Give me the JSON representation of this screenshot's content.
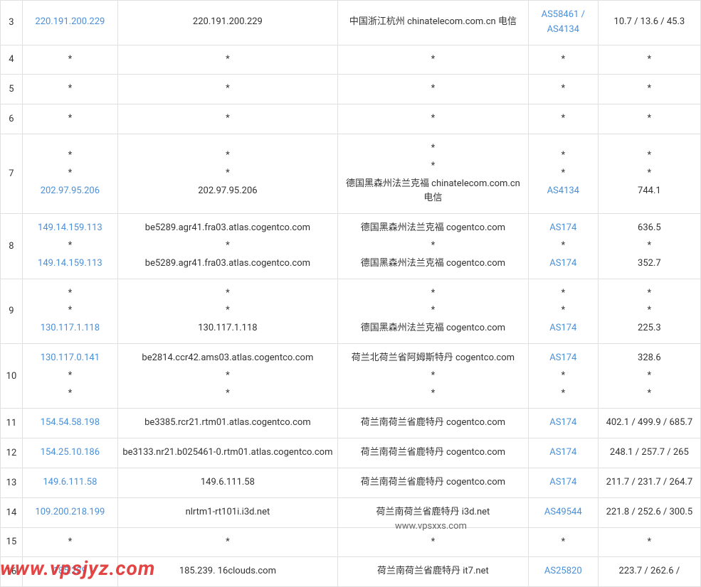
{
  "watermark": "www.vpsjyz.com",
  "watermark2": "www.vpsxxs.com",
  "rows": [
    {
      "hop": "3",
      "ip": [
        {
          "v": "220.191.200.229",
          "link": true
        }
      ],
      "host": [
        {
          "v": "220.191.200.229"
        }
      ],
      "loc": [
        {
          "v": "中国浙江杭州 chinatelecom.com.cn 电信"
        }
      ],
      "as": [
        {
          "v": "AS58461 / AS4134",
          "link": true
        }
      ],
      "rtt": [
        {
          "v": "10.7 / 13.6 / 45.3"
        }
      ]
    },
    {
      "hop": "4",
      "ip": [
        {
          "v": "*"
        }
      ],
      "host": [
        {
          "v": "*"
        }
      ],
      "loc": [
        {
          "v": "*"
        }
      ],
      "as": [
        {
          "v": "*"
        }
      ],
      "rtt": [
        {
          "v": "*"
        }
      ]
    },
    {
      "hop": "5",
      "ip": [
        {
          "v": "*"
        }
      ],
      "host": [
        {
          "v": "*"
        }
      ],
      "loc": [
        {
          "v": "*"
        }
      ],
      "as": [
        {
          "v": "*"
        }
      ],
      "rtt": [
        {
          "v": "*"
        }
      ]
    },
    {
      "hop": "6",
      "ip": [
        {
          "v": "*"
        }
      ],
      "host": [
        {
          "v": "*"
        }
      ],
      "loc": [
        {
          "v": "*"
        }
      ],
      "as": [
        {
          "v": "*"
        }
      ],
      "rtt": [
        {
          "v": "*"
        }
      ]
    },
    {
      "hop": "7",
      "ip": [
        {
          "v": "*"
        },
        {
          "v": "*"
        },
        {
          "v": "202.97.95.206",
          "link": true
        }
      ],
      "host": [
        {
          "v": "*"
        },
        {
          "v": "*"
        },
        {
          "v": "202.97.95.206"
        }
      ],
      "loc": [
        {
          "v": "*"
        },
        {
          "v": "*"
        },
        {
          "v": "德国黑森州法兰克福 chinatelecom.com.cn 电信"
        }
      ],
      "as": [
        {
          "v": "*"
        },
        {
          "v": "*"
        },
        {
          "v": "AS4134",
          "link": true
        }
      ],
      "rtt": [
        {
          "v": "*"
        },
        {
          "v": "*"
        },
        {
          "v": "744.1"
        }
      ]
    },
    {
      "hop": "8",
      "ip": [
        {
          "v": "149.14.159.113",
          "link": true
        },
        {
          "v": "*"
        },
        {
          "v": "149.14.159.113",
          "link": true
        }
      ],
      "host": [
        {
          "v": "be5289.agr41.fra03.atlas.cogentco.com"
        },
        {
          "v": "*"
        },
        {
          "v": "be5289.agr41.fra03.atlas.cogentco.com"
        }
      ],
      "loc": [
        {
          "v": "德国黑森州法兰克福 cogentco.com"
        },
        {
          "v": "*"
        },
        {
          "v": "德国黑森州法兰克福 cogentco.com"
        }
      ],
      "as": [
        {
          "v": "AS174",
          "link": true
        },
        {
          "v": "*"
        },
        {
          "v": "AS174",
          "link": true
        }
      ],
      "rtt": [
        {
          "v": "636.5"
        },
        {
          "v": "*"
        },
        {
          "v": "352.7"
        }
      ]
    },
    {
      "hop": "9",
      "ip": [
        {
          "v": "*"
        },
        {
          "v": "*"
        },
        {
          "v": "130.117.1.118",
          "link": true
        }
      ],
      "host": [
        {
          "v": "*"
        },
        {
          "v": "*"
        },
        {
          "v": "130.117.1.118"
        }
      ],
      "loc": [
        {
          "v": "*"
        },
        {
          "v": "*"
        },
        {
          "v": "德国黑森州法兰克福 cogentco.com"
        }
      ],
      "as": [
        {
          "v": "*"
        },
        {
          "v": "*"
        },
        {
          "v": "AS174",
          "link": true
        }
      ],
      "rtt": [
        {
          "v": "*"
        },
        {
          "v": "*"
        },
        {
          "v": "225.3"
        }
      ]
    },
    {
      "hop": "10",
      "ip": [
        {
          "v": "130.117.0.141",
          "link": true
        },
        {
          "v": "*"
        },
        {
          "v": "*"
        }
      ],
      "host": [
        {
          "v": "be2814.ccr42.ams03.atlas.cogentco.com"
        },
        {
          "v": "*"
        },
        {
          "v": "*"
        }
      ],
      "loc": [
        {
          "v": "荷兰北荷兰省阿姆斯特丹 cogentco.com"
        },
        {
          "v": "*"
        },
        {
          "v": "*"
        }
      ],
      "as": [
        {
          "v": "AS174",
          "link": true
        },
        {
          "v": "*"
        },
        {
          "v": "*"
        }
      ],
      "rtt": [
        {
          "v": "328.6"
        },
        {
          "v": "*"
        },
        {
          "v": "*"
        }
      ]
    },
    {
      "hop": "11",
      "ip": [
        {
          "v": "154.54.58.198",
          "link": true
        }
      ],
      "host": [
        {
          "v": "be3385.rcr21.rtm01.atlas.cogentco.com"
        }
      ],
      "loc": [
        {
          "v": "荷兰南荷兰省鹿特丹 cogentco.com"
        }
      ],
      "as": [
        {
          "v": "AS174",
          "link": true
        }
      ],
      "rtt": [
        {
          "v": "402.1 / 499.9 / 685.7"
        }
      ]
    },
    {
      "hop": "12",
      "ip": [
        {
          "v": "154.25.10.186",
          "link": true
        }
      ],
      "host": [
        {
          "v": "be3133.nr21.b025461-0.rtm01.atlas.cogentco.com"
        }
      ],
      "loc": [
        {
          "v": "荷兰南荷兰省鹿特丹 cogentco.com"
        }
      ],
      "as": [
        {
          "v": "AS174",
          "link": true
        }
      ],
      "rtt": [
        {
          "v": "248.1 / 257.7 / 265"
        }
      ]
    },
    {
      "hop": "13",
      "ip": [
        {
          "v": "149.6.111.58",
          "link": true
        }
      ],
      "host": [
        {
          "v": "149.6.111.58"
        }
      ],
      "loc": [
        {
          "v": "荷兰南荷兰省鹿特丹 cogentco.com"
        }
      ],
      "as": [
        {
          "v": "AS174",
          "link": true
        }
      ],
      "rtt": [
        {
          "v": "211.7 / 231.7 / 264.7"
        }
      ]
    },
    {
      "hop": "14",
      "ip": [
        {
          "v": "109.200.218.199",
          "link": true
        }
      ],
      "host": [
        {
          "v": "nlrtm1-rt101i.i3d.net"
        }
      ],
      "loc": [
        {
          "v": "荷兰南荷兰省鹿特丹 i3d.net"
        }
      ],
      "as": [
        {
          "v": "AS49544",
          "link": true
        }
      ],
      "rtt": [
        {
          "v": "221.8 / 252.6 / 300.5"
        }
      ]
    },
    {
      "hop": "15",
      "ip": [
        {
          "v": "*"
        }
      ],
      "host": [
        {
          "v": "*"
        }
      ],
      "loc": [
        {
          "v": "*"
        }
      ],
      "as": [
        {
          "v": "*"
        }
      ],
      "rtt": [
        {
          "v": "*"
        }
      ]
    },
    {
      "hop": "16",
      "ip": [
        {
          "v": "185.239",
          "link": true
        }
      ],
      "host": [
        {
          "v": "185.239.        16clouds.com"
        }
      ],
      "loc": [
        {
          "v": "荷兰南荷兰省鹿特丹 it7.net"
        }
      ],
      "as": [
        {
          "v": "AS25820",
          "link": true
        }
      ],
      "rtt": [
        {
          "v": "223.7 / 262.6 /"
        }
      ]
    }
  ]
}
